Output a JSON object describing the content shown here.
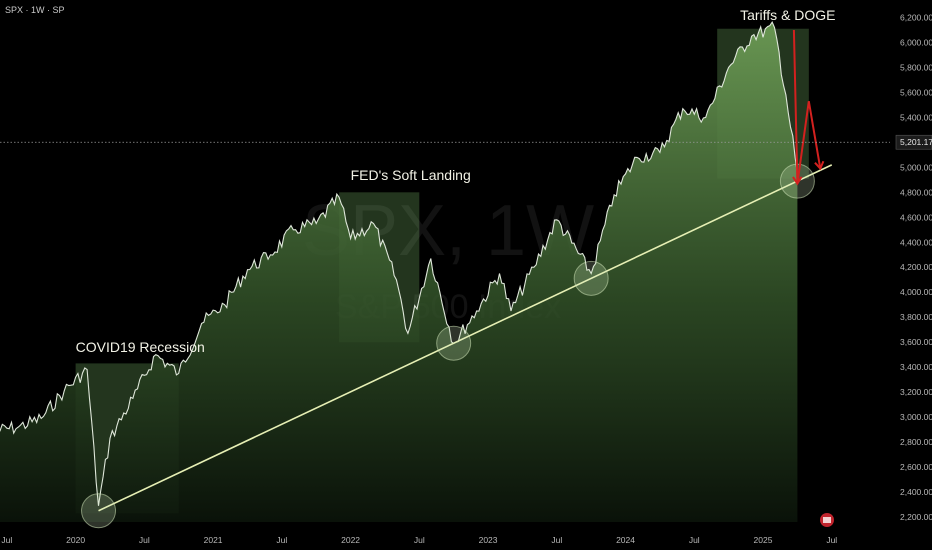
{
  "header": {
    "ticker_label": "SPX · 1W · SP"
  },
  "watermark": {
    "symbol": "SPX, 1W",
    "name": "S&P 500 Index"
  },
  "price_scale": {
    "ticks": [
      "2,200.00",
      "2,400.00",
      "2,600.00",
      "2,800.00",
      "3,000.00",
      "3,200.00",
      "3,400.00",
      "3,600.00",
      "3,800.00",
      "4,000.00",
      "4,200.00",
      "4,400.00",
      "4,600.00",
      "4,800.00",
      "5,000.00",
      "5,200.00",
      "5,400.00",
      "5,600.00",
      "5,800.00",
      "6,000.00",
      "6,200.00"
    ],
    "current_price_label": "5,201.17",
    "current_price": 5201.17
  },
  "time_scale": {
    "ticks": [
      "Jul",
      "2020",
      "Jul",
      "2021",
      "Jul",
      "2022",
      "Jul",
      "2023",
      "Jul",
      "2024",
      "Jul",
      "2025",
      "Jul"
    ]
  },
  "annotations": [
    {
      "label": "COVID19 Recession"
    },
    {
      "label": "FED's Soft Landing"
    },
    {
      "label": "Tariffs & DOGE"
    }
  ],
  "colors": {
    "background": "#000000",
    "price_line": "#dfe7da",
    "area_top": "#6c9b55",
    "trendline": "#e6efb4",
    "annotation_box": "#7fbf6a",
    "projection_arrow": "#d3211f",
    "axis_text": "#b8b8b8"
  },
  "chart_data": {
    "type": "area",
    "title": "",
    "series": [
      {
        "x": [
          "2019-06",
          "2019-08",
          "2019-10",
          "2019-12",
          "2020-02",
          "2020-03",
          "2020-04",
          "2020-06",
          "2020-08",
          "2020-10",
          "2020-12",
          "2021-02",
          "2021-04",
          "2021-06",
          "2021-08",
          "2021-10",
          "2021-12",
          "2022-01",
          "2022-03",
          "2022-05",
          "2022-06",
          "2022-08",
          "2022-10",
          "2022-12",
          "2023-02",
          "2023-03",
          "2023-05",
          "2023-07",
          "2023-10",
          "2023-12",
          "2024-02",
          "2024-04",
          "2024-06",
          "2024-08",
          "2024-10",
          "2024-12",
          "2025-02",
          "2025-03",
          "2025-04"
        ],
        "values": [
          2890,
          2920,
          2990,
          3210,
          3380,
          2290,
          2830,
          3150,
          3500,
          3350,
          3750,
          3900,
          4180,
          4300,
          4500,
          4550,
          4760,
          4430,
          4550,
          4100,
          3670,
          4270,
          3590,
          3850,
          4150,
          3850,
          4200,
          4580,
          4150,
          4780,
          5080,
          5120,
          5470,
          5400,
          5800,
          6050,
          6120,
          5580,
          4950
        ]
      }
    ],
    "trendline": {
      "from": [
        "2020-03",
        2250
      ],
      "to": [
        "2025-07",
        5020
      ]
    },
    "projection": {
      "x": [
        "2025-03",
        "2025-04",
        "2025-05",
        "2025-06"
      ],
      "values": [
        6100,
        4870,
        5530,
        4990
      ]
    },
    "y_scale": "linear",
    "ylim": [
      2160,
      6260
    ],
    "xlabel": "",
    "ylabel": "",
    "grid": false,
    "legend": "none"
  }
}
